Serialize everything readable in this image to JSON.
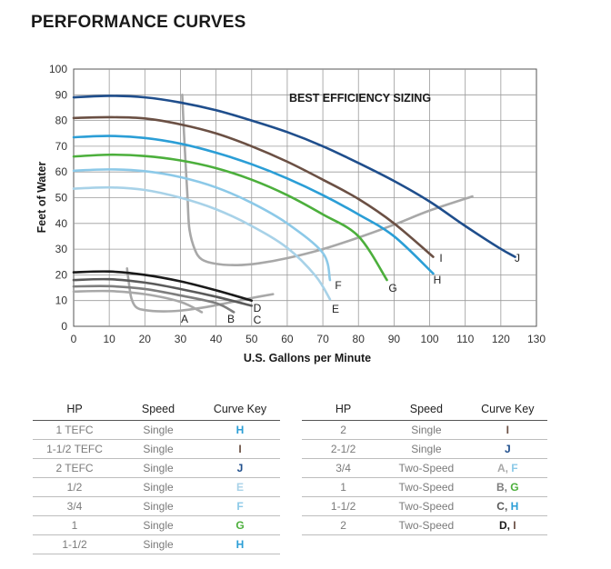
{
  "title": "PERFORMANCE CURVES",
  "chart_data": {
    "type": "line",
    "title": "PERFORMANCE CURVES",
    "annotation": "BEST EFFICIENCY SIZING",
    "xlabel": "U.S. Gallons per Minute",
    "ylabel": "Feet of Water",
    "xlim": [
      0,
      130
    ],
    "ylim": [
      0,
      100
    ],
    "xticks": [
      0,
      10,
      20,
      30,
      40,
      50,
      60,
      70,
      80,
      90,
      100,
      110,
      120,
      130
    ],
    "yticks": [
      0,
      10,
      20,
      30,
      40,
      50,
      60,
      70,
      80,
      90,
      100
    ],
    "grid": true,
    "series": [
      {
        "name": "J",
        "color": "#1f4e8c",
        "x": [
          0,
          10,
          20,
          30,
          40,
          50,
          60,
          70,
          80,
          90,
          100,
          110,
          119.5,
          124
        ],
        "y": [
          89,
          89.6,
          89,
          87,
          84,
          80,
          75.5,
          70,
          63.5,
          56.5,
          48.5,
          39,
          30.5,
          27
        ]
      },
      {
        "name": "I",
        "color": "#6b5044",
        "x": [
          0,
          10,
          20,
          30,
          40,
          50,
          60,
          70,
          80,
          90,
          101
        ],
        "y": [
          81,
          81.3,
          80.8,
          78.5,
          75,
          70,
          64,
          57,
          49.5,
          40,
          27
        ]
      },
      {
        "name": "H",
        "color": "#2b9ed6",
        "x": [
          0,
          10,
          20,
          30,
          40,
          50,
          60,
          70,
          80,
          90,
          101
        ],
        "y": [
          73.5,
          74,
          73.2,
          71,
          67.5,
          63,
          57.5,
          51,
          43.5,
          35,
          20.5
        ]
      },
      {
        "name": "G",
        "color": "#4caf3c",
        "x": [
          0,
          10,
          20,
          30,
          40,
          50,
          60,
          70,
          80,
          88
        ],
        "y": [
          66,
          66.7,
          66.2,
          64.5,
          61.5,
          57,
          51,
          43.5,
          35,
          18
        ]
      },
      {
        "name": "F",
        "color": "#8cc9e8",
        "x": [
          0,
          10,
          20,
          30,
          40,
          50,
          60,
          70,
          72
        ],
        "y": [
          60.5,
          61,
          60.3,
          58,
          54,
          48,
          40,
          28.5,
          18
        ]
      },
      {
        "name": "E",
        "color": "#a8d2e8",
        "x": [
          0,
          10,
          20,
          30,
          40,
          50,
          60,
          68,
          72
        ],
        "y": [
          53.5,
          54,
          53,
          50,
          45.5,
          39,
          30.5,
          19.5,
          10.5
        ]
      },
      {
        "name": "D",
        "color": "#1a1a1a",
        "x": [
          0,
          10,
          20,
          30,
          40,
          50
        ],
        "y": [
          21,
          21.3,
          20,
          17.5,
          14,
          10
        ]
      },
      {
        "name": "C",
        "color": "#5a5a5a",
        "x": [
          0,
          10,
          20,
          30,
          40,
          50
        ],
        "y": [
          18,
          18.3,
          17,
          14.5,
          11.5,
          8
        ]
      },
      {
        "name": "B",
        "color": "#7e7e7e",
        "x": [
          0,
          10,
          20,
          30,
          40,
          45
        ],
        "y": [
          15.5,
          15.6,
          14.5,
          12,
          9,
          5.5
        ]
      },
      {
        "name": "A",
        "color": "#a8a8a8",
        "x": [
          0,
          10,
          20,
          30,
          36
        ],
        "y": [
          13.5,
          13.7,
          12.5,
          9.5,
          5.5
        ]
      }
    ],
    "system_curves": [
      {
        "name": "system-curve-large",
        "color": "#a8a8a8",
        "x": [
          30.5,
          31,
          31.5,
          32,
          32.5,
          34,
          36,
          40,
          46,
          52,
          60,
          70,
          80,
          90,
          100,
          112
        ],
        "y": [
          90,
          75,
          62,
          50,
          38,
          30,
          26,
          24.3,
          23.8,
          24.5,
          26.5,
          30,
          34.5,
          39.5,
          45,
          50.5
        ]
      },
      {
        "name": "system-curve-small",
        "color": "#a8a8a8",
        "x": [
          15,
          15.5,
          16.2,
          17.5,
          20,
          25,
          30,
          35,
          40,
          45,
          50,
          56
        ],
        "y": [
          22.5,
          17,
          11,
          7.5,
          6.3,
          5.8,
          6.1,
          7,
          8.2,
          9.6,
          11,
          12.5
        ]
      }
    ],
    "curve_labels": [
      "A",
      "B",
      "C",
      "D",
      "E",
      "F",
      "G",
      "H",
      "I",
      "J"
    ]
  },
  "tables": {
    "headers": {
      "hp": "HP",
      "speed": "Speed",
      "curve_key": "Curve Key"
    },
    "left": [
      {
        "hp": "1 TEFC",
        "speed": "Single",
        "key": [
          {
            "t": "H",
            "c": "#2b9ed6"
          }
        ]
      },
      {
        "hp": "1-1/2 TEFC",
        "speed": "Single",
        "key": [
          {
            "t": "I",
            "c": "#6b5044"
          }
        ]
      },
      {
        "hp": "2 TEFC",
        "speed": "Single",
        "key": [
          {
            "t": "J",
            "c": "#1f4e8c"
          }
        ]
      },
      {
        "hp": "1/2",
        "speed": "Single",
        "key": [
          {
            "t": "E",
            "c": "#a8d2e8"
          }
        ]
      },
      {
        "hp": "3/4",
        "speed": "Single",
        "key": [
          {
            "t": "F",
            "c": "#8cc9e8"
          }
        ]
      },
      {
        "hp": "1",
        "speed": "Single",
        "key": [
          {
            "t": "G",
            "c": "#4caf3c"
          }
        ]
      },
      {
        "hp": "1-1/2",
        "speed": "Single",
        "key": [
          {
            "t": "H",
            "c": "#2b9ed6"
          }
        ]
      }
    ],
    "right": [
      {
        "hp": "2",
        "speed": "Single",
        "key": [
          {
            "t": "I",
            "c": "#6b5044"
          }
        ]
      },
      {
        "hp": "2-1/2",
        "speed": "Single",
        "key": [
          {
            "t": "J",
            "c": "#1f4e8c"
          }
        ]
      },
      {
        "hp": "3/4",
        "speed": "Two-Speed",
        "key": [
          {
            "t": "A",
            "c": "#a8a8a8"
          },
          {
            "t": ", ",
            "c": "#a8a8a8"
          },
          {
            "t": "F",
            "c": "#8cc9e8"
          }
        ]
      },
      {
        "hp": "1",
        "speed": "Two-Speed",
        "key": [
          {
            "t": "B",
            "c": "#7e7e7e"
          },
          {
            "t": ", ",
            "c": "#7e7e7e"
          },
          {
            "t": "G",
            "c": "#4caf3c"
          }
        ]
      },
      {
        "hp": "1-1/2",
        "speed": "Two-Speed",
        "key": [
          {
            "t": "C",
            "c": "#5a5a5a"
          },
          {
            "t": ", ",
            "c": "#5a5a5a"
          },
          {
            "t": "H",
            "c": "#2b9ed6"
          }
        ]
      },
      {
        "hp": "2",
        "speed": "Two-Speed",
        "key": [
          {
            "t": "D",
            "c": "#1a1a1a"
          },
          {
            "t": ", ",
            "c": "#1a1a1a"
          },
          {
            "t": "I",
            "c": "#6b5044"
          }
        ]
      }
    ]
  }
}
